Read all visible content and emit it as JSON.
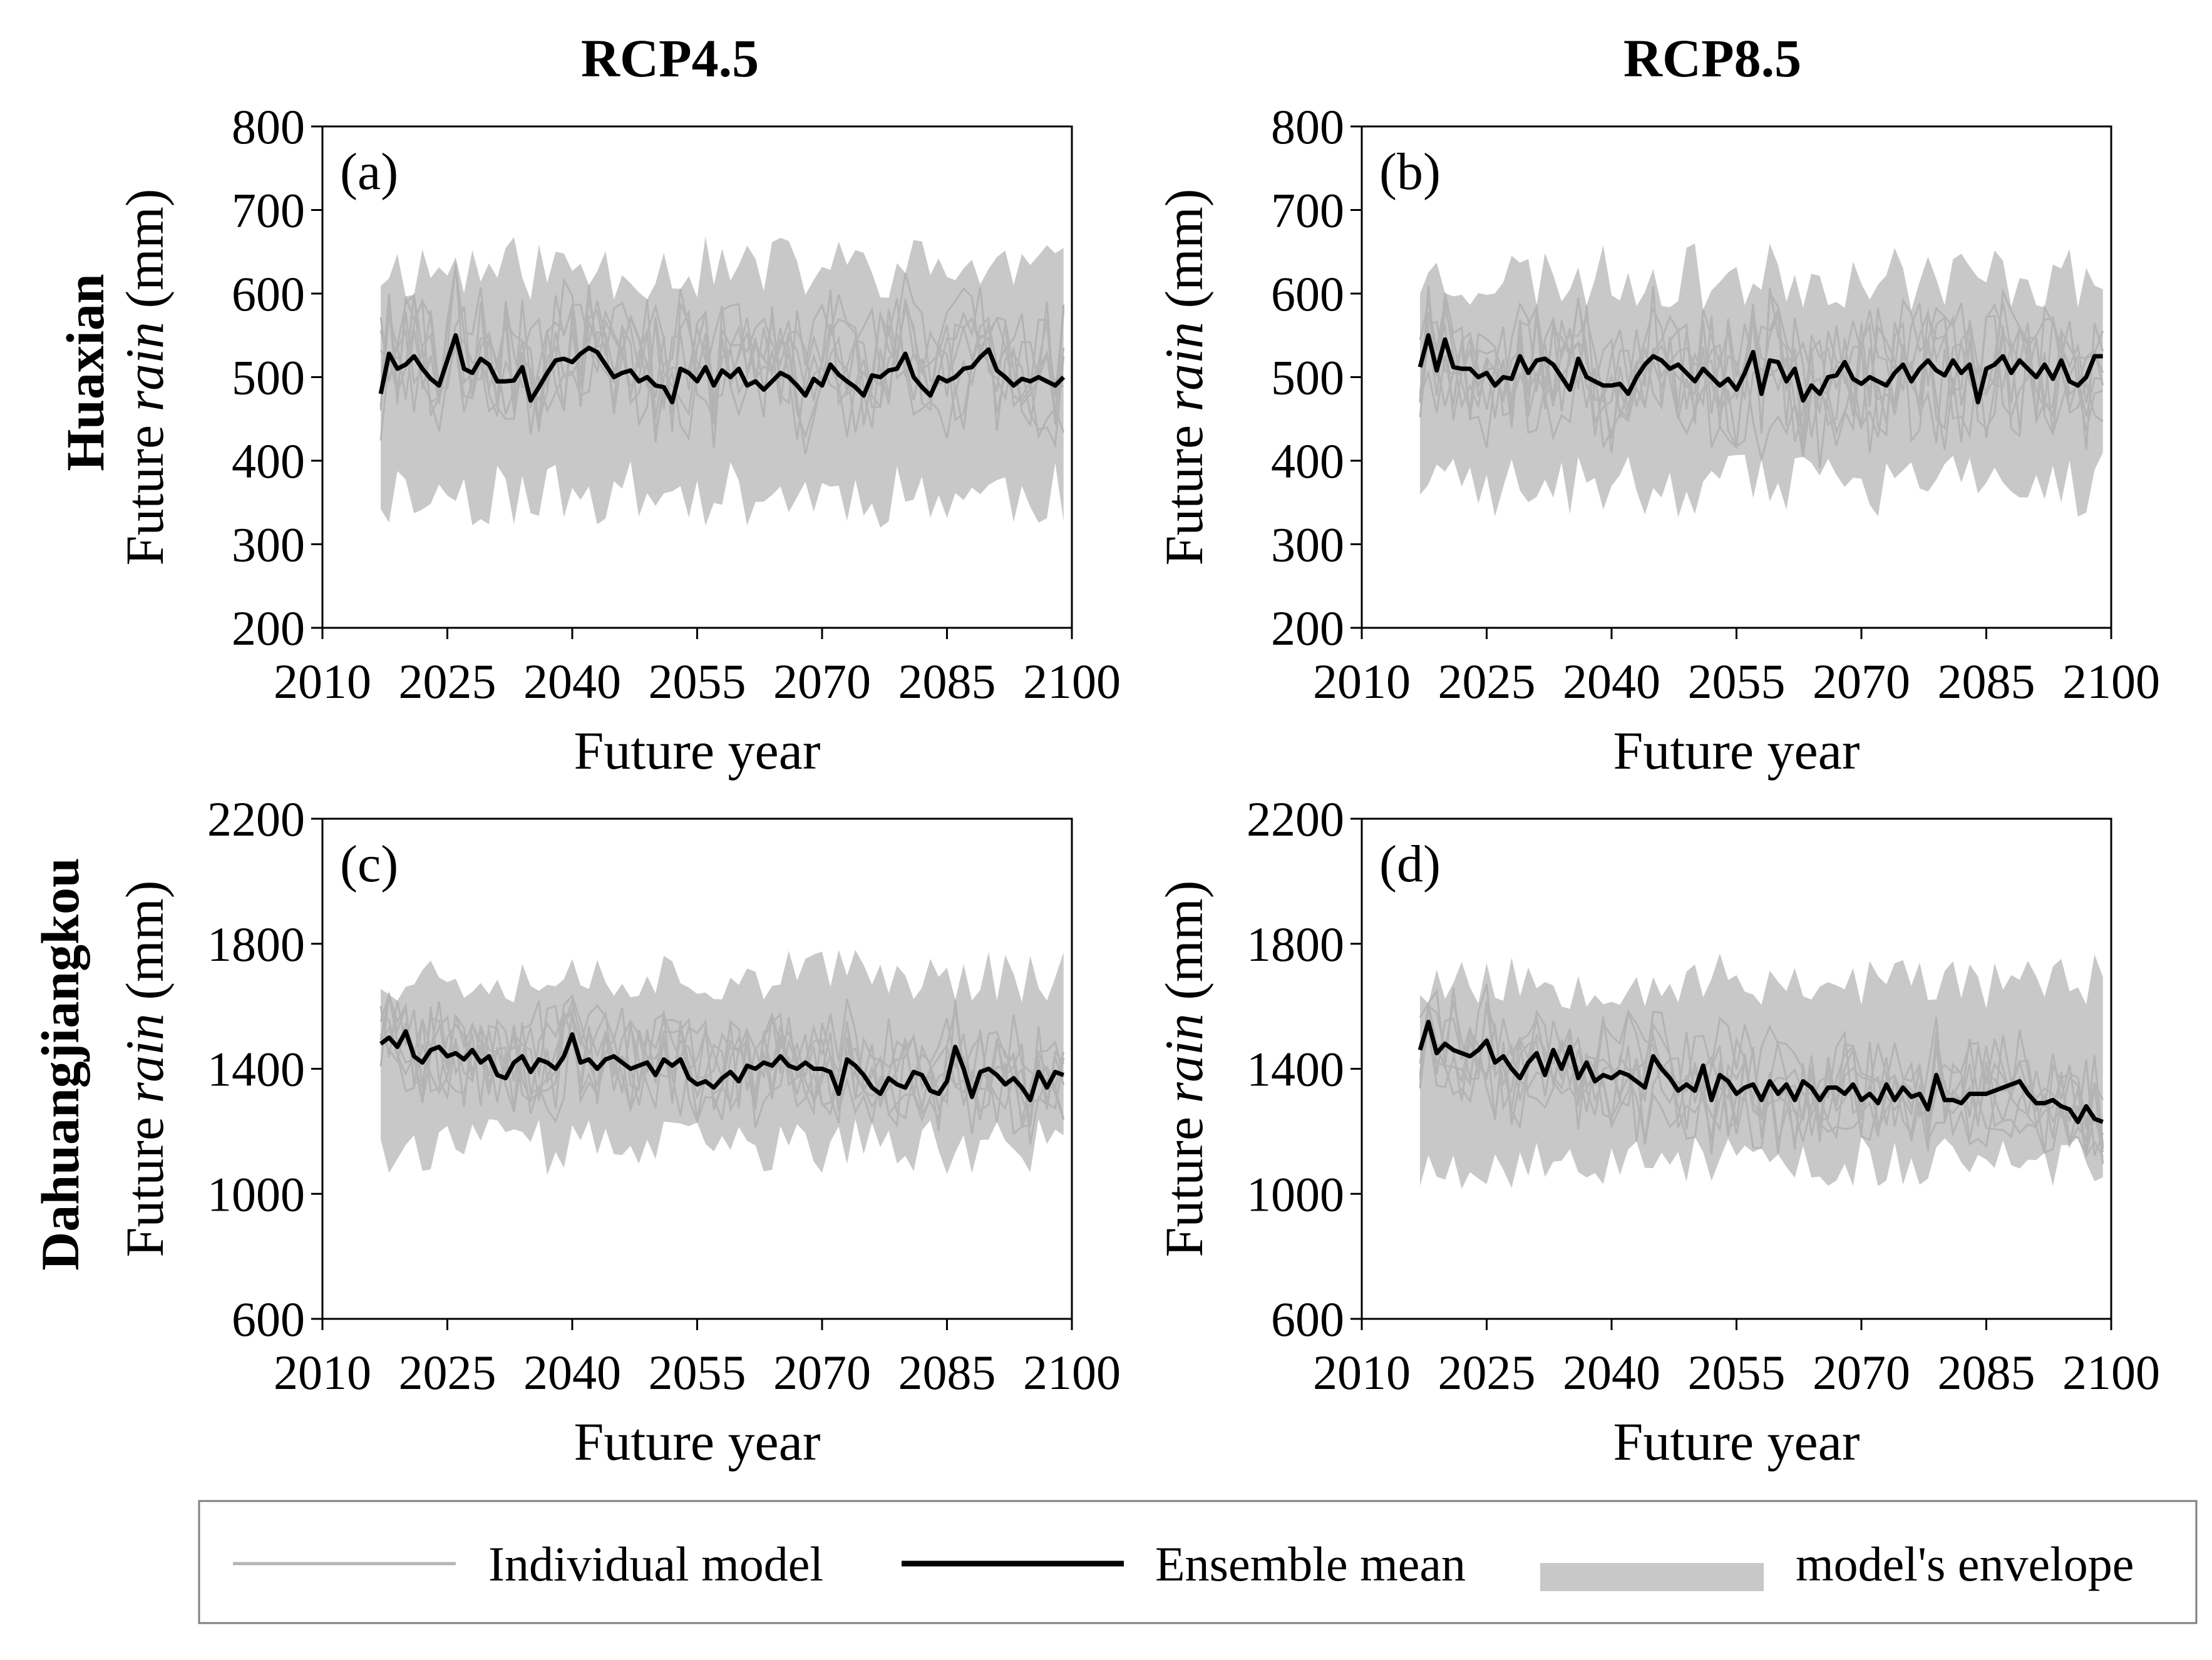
{
  "figure": {
    "column_titles": [
      "RCP4.5",
      "RCP8.5"
    ],
    "row_titles": [
      "Huaxian",
      "Dahuangjiangkou"
    ],
    "legend": {
      "individual_label": "Individual model",
      "mean_label": "Ensemble mean",
      "envelope_label": "model's envelope"
    },
    "colors": {
      "individual": "#b3b3b3",
      "mean": "#000000",
      "envelope": "#c8c8c8"
    }
  },
  "chart_data": [
    {
      "type": "line",
      "panel_label": "(a)",
      "scenario": "RCP4.5",
      "station": "Huaxian",
      "ylabel_pre": "Future ",
      "ylabel_em": "rain",
      "ylabel_post": " (mm)",
      "xlabel": "Future year",
      "xlim": [
        2010,
        2100
      ],
      "ylim": [
        200,
        800
      ],
      "xticks": [
        "2010",
        "2025",
        "2040",
        "2055",
        "2070",
        "2085",
        "2100"
      ],
      "yticks": [
        "200",
        "300",
        "400",
        "500",
        "600",
        "700",
        "800"
      ],
      "x_start": 2017,
      "x_end": 2099,
      "ensemble_mean": [
        480,
        528,
        510,
        515,
        525,
        510,
        498,
        490,
        520,
        550,
        510,
        505,
        522,
        515,
        495,
        495,
        496,
        512,
        472,
        488,
        505,
        520,
        522,
        518,
        528,
        535,
        530,
        515,
        500,
        505,
        508,
        495,
        500,
        490,
        488,
        470,
        510,
        505,
        495,
        512,
        490,
        508,
        500,
        510,
        490,
        495,
        485,
        495,
        505,
        500,
        490,
        478,
        498,
        490,
        515,
        503,
        495,
        488,
        478,
        502,
        500,
        508,
        510,
        528,
        500,
        488,
        478,
        500,
        495,
        500,
        510,
        512,
        524,
        533,
        508,
        500,
        490,
        498,
        495,
        500,
        495,
        490,
        500
      ],
      "envelope_upper": 630,
      "envelope_lower": 360,
      "envelope_amp": 40,
      "model_spread": 70,
      "n_models": 7,
      "seed": 11
    },
    {
      "type": "line",
      "panel_label": "(b)",
      "scenario": "RCP8.5",
      "station": "Huaxian",
      "ylabel_pre": "Future ",
      "ylabel_em": "rain",
      "ylabel_post": " (mm)",
      "xlabel": "Future year",
      "xlim": [
        2010,
        2100
      ],
      "ylim": [
        200,
        800
      ],
      "xticks": [
        "2010",
        "2025",
        "2040",
        "2055",
        "2070",
        "2085",
        "2100"
      ],
      "yticks": [
        "200",
        "300",
        "400",
        "500",
        "600",
        "700",
        "800"
      ],
      "x_start": 2017,
      "x_end": 2099,
      "ensemble_mean": [
        512,
        550,
        508,
        545,
        512,
        510,
        510,
        500,
        505,
        490,
        500,
        498,
        525,
        505,
        520,
        522,
        515,
        500,
        485,
        522,
        500,
        495,
        490,
        490,
        492,
        480,
        500,
        515,
        525,
        520,
        510,
        515,
        505,
        495,
        510,
        500,
        490,
        498,
        485,
        505,
        530,
        480,
        520,
        518,
        495,
        510,
        472,
        490,
        480,
        500,
        502,
        518,
        498,
        492,
        500,
        495,
        490,
        505,
        515,
        495,
        510,
        520,
        508,
        502,
        520,
        505,
        515,
        470,
        510,
        515,
        525,
        505,
        520,
        510,
        500,
        515,
        498,
        520,
        495,
        490,
        500,
        525,
        525
      ],
      "envelope_upper": 620,
      "envelope_lower": 370,
      "envelope_amp": 40,
      "model_spread": 70,
      "n_models": 7,
      "seed": 23
    },
    {
      "type": "line",
      "panel_label": "(c)",
      "scenario": "RCP4.5",
      "station": "Dahuangjiangkou",
      "ylabel_pre": "Future ",
      "ylabel_em": "rain",
      "ylabel_post": " (mm)",
      "xlabel": "Future year",
      "xlim": [
        2010,
        2100
      ],
      "ylim": [
        600,
        2200
      ],
      "xticks": [
        "2010",
        "2025",
        "2040",
        "2055",
        "2070",
        "2085",
        "2100"
      ],
      "yticks": [
        "600",
        "1000",
        "1400",
        "1800",
        "2200"
      ],
      "x_start": 2017,
      "x_end": 2099,
      "ensemble_mean": [
        1480,
        1500,
        1470,
        1520,
        1440,
        1420,
        1460,
        1470,
        1440,
        1450,
        1430,
        1460,
        1420,
        1440,
        1380,
        1370,
        1420,
        1440,
        1390,
        1430,
        1420,
        1400,
        1440,
        1510,
        1420,
        1430,
        1400,
        1430,
        1440,
        1420,
        1400,
        1410,
        1420,
        1380,
        1430,
        1410,
        1430,
        1370,
        1350,
        1360,
        1340,
        1370,
        1390,
        1360,
        1410,
        1400,
        1420,
        1410,
        1440,
        1410,
        1400,
        1420,
        1400,
        1400,
        1390,
        1320,
        1430,
        1410,
        1380,
        1340,
        1320,
        1370,
        1350,
        1340,
        1390,
        1380,
        1330,
        1320,
        1360,
        1470,
        1400,
        1310,
        1390,
        1400,
        1380,
        1350,
        1370,
        1340,
        1300,
        1390,
        1340,
        1390,
        1380
      ],
      "envelope_upper": 1700,
      "envelope_lower": 1150,
      "envelope_amp": 90,
      "model_spread": 150,
      "n_models": 7,
      "seed": 37
    },
    {
      "type": "line",
      "panel_label": "(d)",
      "scenario": "RCP8.5",
      "station": "Dahuangjiangkou",
      "ylabel_pre": "Future ",
      "ylabel_em": "rain",
      "ylabel_post": " (mm)",
      "xlabel": "Future year",
      "xlim": [
        2010,
        2100
      ],
      "ylim": [
        600,
        2200
      ],
      "xticks": [
        "2010",
        "2025",
        "2040",
        "2055",
        "2070",
        "2085",
        "2100"
      ],
      "yticks": [
        "600",
        "1000",
        "1400",
        "1800",
        "2200"
      ],
      "x_start": 2017,
      "x_end": 2099,
      "ensemble_mean": [
        1460,
        1550,
        1450,
        1480,
        1460,
        1450,
        1440,
        1460,
        1490,
        1420,
        1440,
        1400,
        1370,
        1420,
        1450,
        1380,
        1460,
        1400,
        1470,
        1370,
        1420,
        1360,
        1380,
        1370,
        1390,
        1380,
        1360,
        1340,
        1440,
        1400,
        1370,
        1330,
        1350,
        1330,
        1410,
        1300,
        1380,
        1360,
        1320,
        1340,
        1350,
        1300,
        1360,
        1320,
        1350,
        1300,
        1360,
        1340,
        1300,
        1340,
        1340,
        1320,
        1350,
        1300,
        1320,
        1290,
        1350,
        1300,
        1340,
        1310,
        1320,
        1270,
        1380,
        1300,
        1300,
        1290,
        1320,
        1320,
        1320,
        1330,
        1340,
        1350,
        1360,
        1320,
        1290,
        1290,
        1300,
        1280,
        1270,
        1230,
        1280,
        1240,
        1230
      ],
      "envelope_upper": 1680,
      "envelope_lower": 1100,
      "envelope_amp": 90,
      "model_spread": 150,
      "n_models": 7,
      "seed": 53
    }
  ]
}
